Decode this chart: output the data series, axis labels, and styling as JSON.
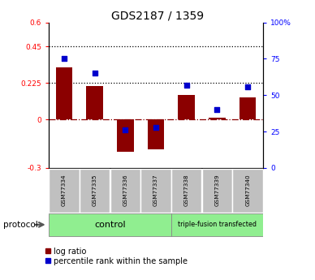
{
  "title": "GDS2187 / 1359",
  "samples": [
    "GSM77334",
    "GSM77335",
    "GSM77336",
    "GSM77337",
    "GSM77338",
    "GSM77339",
    "GSM77340"
  ],
  "log_ratio": [
    0.32,
    0.205,
    -0.2,
    -0.185,
    0.15,
    0.01,
    0.135
  ],
  "percentile_rank": [
    75,
    65,
    26,
    28,
    57,
    40,
    56
  ],
  "ylim_left": [
    -0.3,
    0.6
  ],
  "ylim_right": [
    0,
    100
  ],
  "yticks_left": [
    -0.3,
    0.0,
    0.225,
    0.45,
    0.6
  ],
  "ytick_labels_left": [
    "-0.3",
    "0",
    "0.225",
    "0.45",
    "0.6"
  ],
  "yticks_right": [
    0,
    25,
    50,
    75,
    100
  ],
  "ytick_labels_right": [
    "0",
    "25",
    "50",
    "75",
    "100%"
  ],
  "hlines": [
    0.225,
    0.45
  ],
  "hline_zero": 0.0,
  "bar_color": "#8B0000",
  "scatter_color": "#0000CC",
  "bar_width": 0.55,
  "protocol_label": "protocol",
  "legend_log_ratio": "log ratio",
  "legend_percentile": "percentile rank within the sample",
  "light_green": "#90EE90",
  "gray": "#C0C0C0",
  "white": "#ffffff"
}
